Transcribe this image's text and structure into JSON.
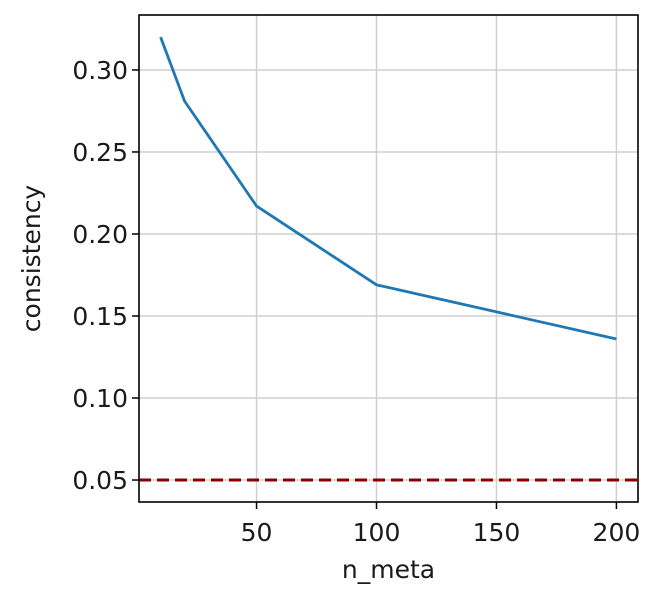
{
  "chart_data": {
    "type": "line",
    "title": "",
    "xlabel": "n_meta",
    "ylabel": "consistency",
    "xlim": [
      1,
      209
    ],
    "ylim": [
      0.0366,
      0.3335
    ],
    "xticks": [
      50,
      100,
      150,
      200
    ],
    "xtick_labels": [
      "50",
      "100",
      "150",
      "200"
    ],
    "yticks": [
      0.05,
      0.1,
      0.15,
      0.2,
      0.25,
      0.3
    ],
    "ytick_labels": [
      "0.05",
      "0.10",
      "0.15",
      "0.20",
      "0.25",
      "0.30"
    ],
    "grid": true,
    "legend": false,
    "series": [
      {
        "x": [
          10,
          20,
          50,
          100,
          200
        ],
        "values": [
          0.32,
          0.281,
          0.217,
          0.169,
          0.136
        ],
        "color": "#1f77b4"
      }
    ],
    "reference_lines": [
      {
        "orientation": "horizontal",
        "value": 0.05,
        "color": "#8b0000",
        "style": "dashed"
      }
    ]
  }
}
